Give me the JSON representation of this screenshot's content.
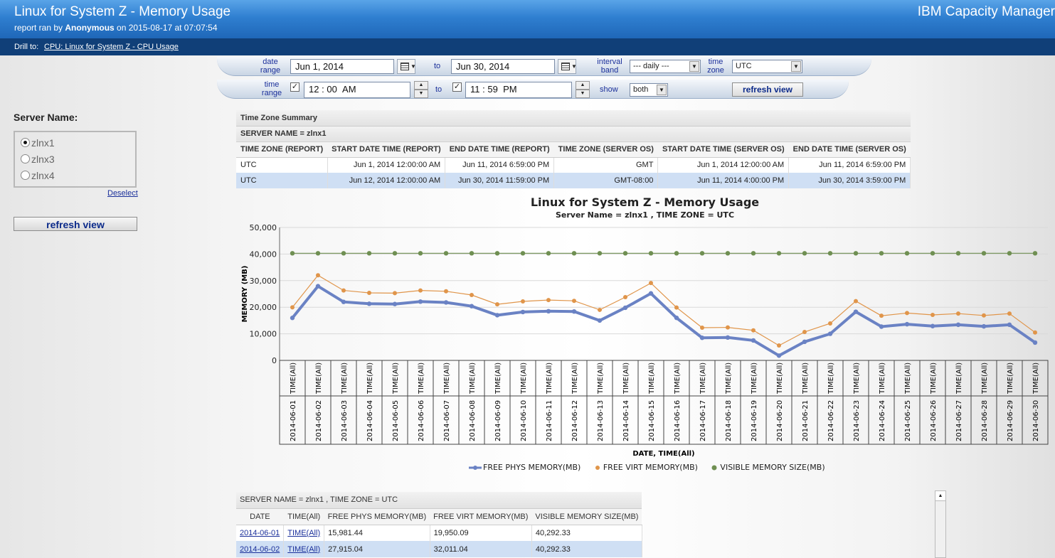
{
  "header": {
    "title": "Linux for System Z - Memory Usage",
    "sub_prefix": "report ran by ",
    "user": "Anonymous",
    "sub_suffix": " on 2015-08-17 at 07:07:54",
    "brand": "IBM Capacity Manager"
  },
  "drill": {
    "label": "Drill to:",
    "link": "CPU: Linux for System Z - CPU Usage"
  },
  "filters": {
    "date_range_label": "date range",
    "date_from": "Jun 1, 2014",
    "to_label": "to",
    "date_to": "Jun 30, 2014",
    "interval_label": "interval band",
    "interval_value": "---  daily  ---",
    "timezone_label": "time zone",
    "timezone_value": "UTC",
    "time_range_label": "time range",
    "time_from_h": "12",
    "time_from_m": "00",
    "time_from_ampm": "AM",
    "time_to_h": "11",
    "time_to_m": "59",
    "time_to_ampm": "PM",
    "colon": ":",
    "check": "✓",
    "show_label": "show",
    "show_value": "both",
    "refresh": "refresh view"
  },
  "sidebar": {
    "title": "Server Name:",
    "servers": [
      {
        "name": "zlnx1",
        "selected": true
      },
      {
        "name": "zlnx3",
        "selected": false
      },
      {
        "name": "zlnx4",
        "selected": false
      }
    ],
    "deselect": "Deselect",
    "refresh": "refresh view"
  },
  "tz_table": {
    "caption": "Time Zone Summary",
    "server": "SERVER NAME = zlnx1",
    "headers": [
      "TIME ZONE (REPORT)",
      "START DATE TIME (REPORT)",
      "END DATE TIME (REPORT)",
      "TIME ZONE (SERVER OS)",
      "START DATE TIME (SERVER OS)",
      "END DATE TIME (SERVER OS)"
    ],
    "rows": [
      [
        "UTC",
        "Jun 1, 2014 12:00:00 AM",
        "Jun 11, 2014 6:59:00 PM",
        "GMT",
        "Jun 1, 2014 12:00:00 AM",
        "Jun 11, 2014 6:59:00 PM"
      ],
      [
        "UTC",
        "Jun 12, 2014 12:00:00 AM",
        "Jun 30, 2014 11:59:00 PM",
        "GMT-08:00",
        "Jun 11, 2014 4:00:00 PM",
        "Jun 30, 2014 3:59:00 PM"
      ]
    ]
  },
  "chart_data": {
    "type": "line",
    "title": "Linux for System Z - Memory Usage",
    "subtitle": "Server Name = zlnx1 , TIME ZONE = UTC",
    "xlabel": "DATE, TIME(All)",
    "ylabel": "MEMORY (MB)",
    "ylim": [
      0,
      50000
    ],
    "yticks": [
      "0",
      "10,000",
      "20,000",
      "30,000",
      "40,000",
      "50,000"
    ],
    "time_label": "TIME(All)",
    "categories": [
      "2014-06-01",
      "2014-06-02",
      "2014-06-03",
      "2014-06-04",
      "2014-06-05",
      "2014-06-06",
      "2014-06-07",
      "2014-06-08",
      "2014-06-09",
      "2014-06-10",
      "2014-06-11",
      "2014-06-12",
      "2014-06-13",
      "2014-06-14",
      "2014-06-15",
      "2014-06-16",
      "2014-06-17",
      "2014-06-18",
      "2014-06-19",
      "2014-06-20",
      "2014-06-21",
      "2014-06-22",
      "2014-06-23",
      "2014-06-24",
      "2014-06-25",
      "2014-06-26",
      "2014-06-27",
      "2014-06-28",
      "2014-06-29",
      "2014-06-30"
    ],
    "series": [
      {
        "name": "FREE PHYS MEMORY(MB)",
        "color": "#6a82c4",
        "values": [
          15981,
          27915,
          22000,
          21300,
          21200,
          22100,
          21800,
          20400,
          17000,
          18200,
          18500,
          18400,
          15000,
          19800,
          25200,
          16000,
          8500,
          8600,
          7500,
          1800,
          7000,
          10000,
          18300,
          12700,
          13600,
          12900,
          13400,
          12800,
          13400,
          6700
        ]
      },
      {
        "name": "FREE VIRT MEMORY(MB)",
        "color": "#e0954a",
        "values": [
          19950,
          32011,
          26300,
          25400,
          25300,
          26300,
          26000,
          24600,
          21100,
          22200,
          22700,
          22400,
          19000,
          23800,
          29100,
          19900,
          12300,
          12400,
          11300,
          5600,
          10700,
          13900,
          22300,
          16800,
          17800,
          17100,
          17600,
          16900,
          17600,
          10500
        ]
      },
      {
        "name": "VISIBLE MEMORY SIZE(MB)",
        "color": "#6f8f52",
        "values": [
          40292,
          40292,
          40292,
          40292,
          40292,
          40292,
          40292,
          40292,
          40292,
          40292,
          40292,
          40292,
          40292,
          40292,
          40292,
          40292,
          40292,
          40292,
          40292,
          40292,
          40292,
          40292,
          40292,
          40292,
          40292,
          40292,
          40292,
          40292,
          40292,
          40292
        ]
      }
    ],
    "grid": true,
    "legend": "bottom"
  },
  "data_table": {
    "caption": "SERVER NAME = zlnx1 , TIME ZONE = UTC",
    "headers": [
      "DATE",
      "TIME(All)",
      "FREE PHYS MEMORY(MB)",
      "FREE VIRT MEMORY(MB)",
      "VISIBLE MEMORY SIZE(MB)"
    ],
    "rows": [
      [
        "2014-06-01",
        "TIME(All)",
        "15,981.44",
        "19,950.09",
        "40,292.33"
      ],
      [
        "2014-06-02",
        "TIME(All)",
        "27,915.04",
        "32,011.04",
        "40,292.33"
      ]
    ]
  }
}
